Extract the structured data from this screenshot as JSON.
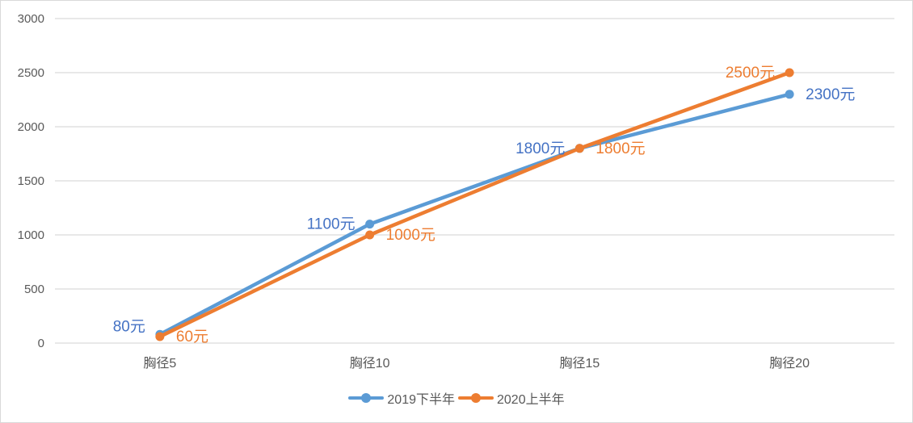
{
  "chart_data": {
    "type": "line",
    "title": "",
    "xlabel": "",
    "ylabel": "",
    "categories": [
      "胸径5",
      "胸径10",
      "胸径15",
      "胸径20"
    ],
    "series": [
      {
        "name": "2019下半年",
        "color": "#5B9BD5",
        "values": [
          80,
          1100,
          1800,
          2300
        ],
        "labels": [
          "80元",
          "1100元",
          "1800元",
          "2300元"
        ],
        "label_color": "#4472C4"
      },
      {
        "name": "2020上半年",
        "color": "#ED7D31",
        "values": [
          60,
          1000,
          1800,
          2500
        ],
        "labels": [
          "60元",
          "1000元",
          "1800元",
          "2500元"
        ],
        "label_color": "#ED7D31"
      }
    ],
    "ylim": [
      0,
      3000
    ],
    "yticks": [
      0,
      500,
      1000,
      1500,
      2000,
      2500,
      3000
    ],
    "grid": true,
    "legend_position": "bottom"
  },
  "legend": {
    "items": [
      {
        "label": "2019下半年",
        "color": "#5B9BD5"
      },
      {
        "label": "2020上半年",
        "color": "#ED7D31"
      }
    ]
  }
}
